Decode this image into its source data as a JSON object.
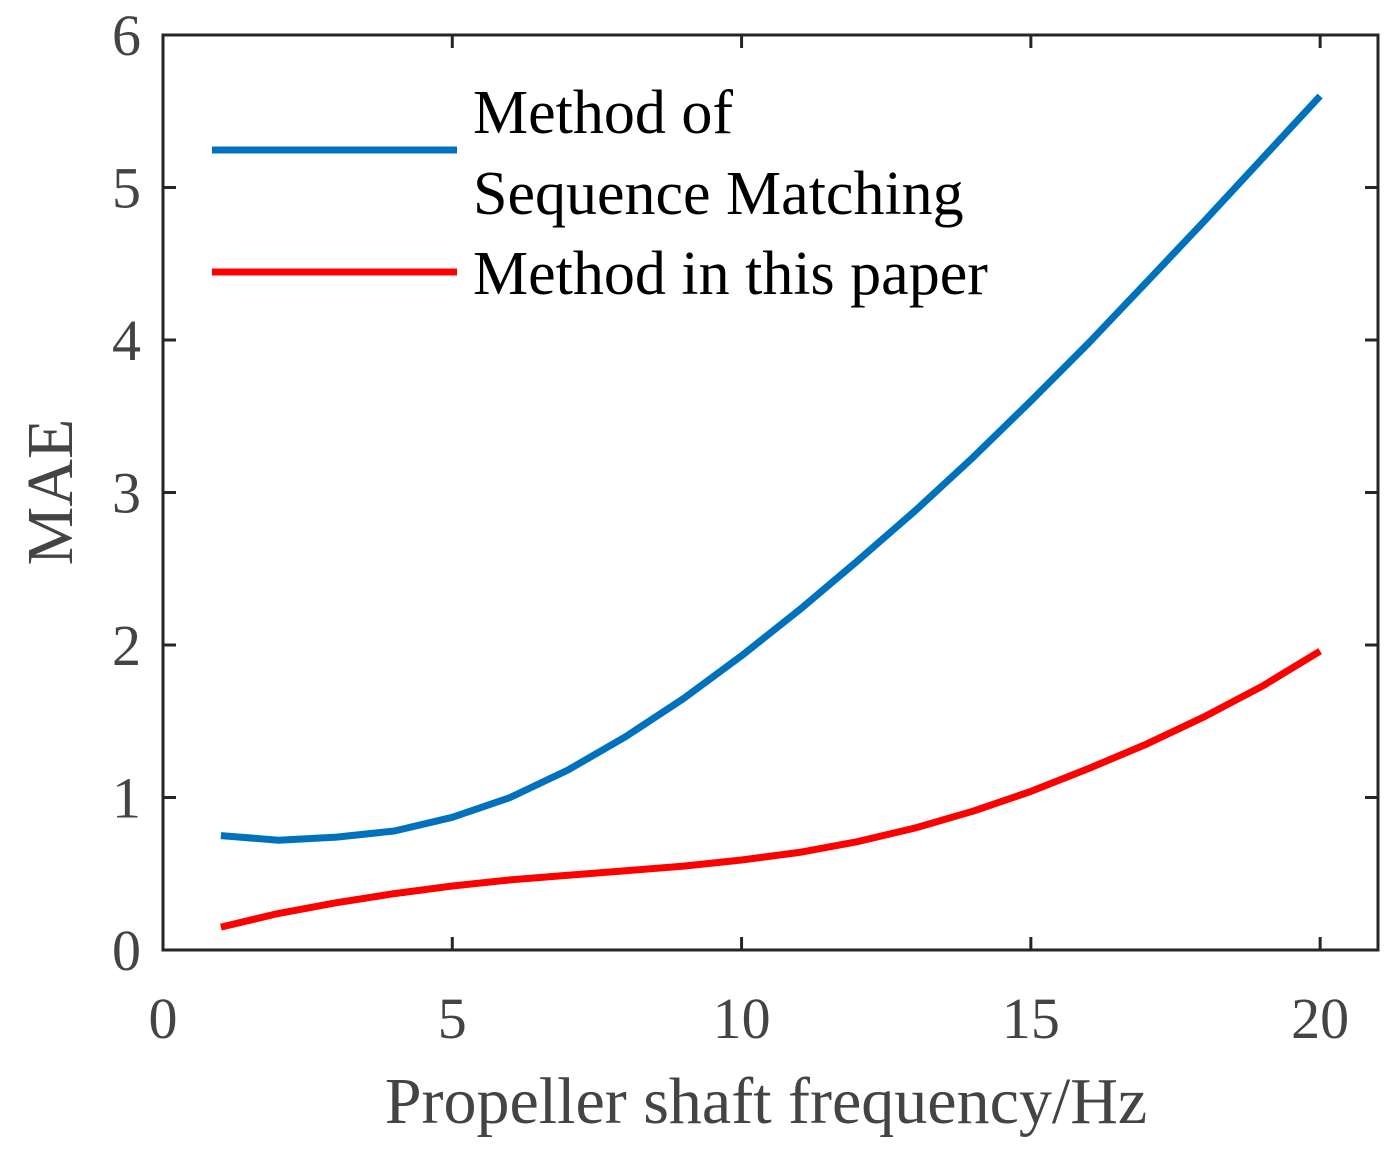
{
  "colors": {
    "series_blue": "#0072BD",
    "series_red": "#FF0000",
    "axis": "#262626",
    "tick_text": "#444444"
  },
  "chart_data": {
    "type": "line",
    "title": "",
    "xlabel": "Propeller shaft frequency/Hz",
    "ylabel": "MAE",
    "xlim": [
      0,
      21
    ],
    "ylim": [
      0,
      6
    ],
    "xticks": [
      0,
      5,
      10,
      15,
      20
    ],
    "yticks": [
      0,
      1,
      2,
      3,
      4,
      5,
      6
    ],
    "grid": false,
    "legend_position": "top-left",
    "x": [
      1,
      2,
      3,
      4,
      5,
      6,
      7,
      8,
      9,
      10,
      11,
      12,
      13,
      14,
      15,
      16,
      17,
      18,
      19,
      20
    ],
    "series": [
      {
        "name": "Method of Sequence Matching",
        "legend_lines": [
          "Method of",
          "Sequence Matching"
        ],
        "color": "#0072BD",
        "values": [
          0.75,
          0.72,
          0.74,
          0.78,
          0.87,
          1.0,
          1.18,
          1.4,
          1.65,
          1.93,
          2.23,
          2.55,
          2.88,
          3.23,
          3.6,
          3.98,
          4.38,
          4.78,
          5.19,
          5.6
        ]
      },
      {
        "name": "Method in this paper",
        "legend_lines": [
          "Method in this paper"
        ],
        "color": "#FF0000",
        "values": [
          0.15,
          0.24,
          0.31,
          0.37,
          0.42,
          0.46,
          0.49,
          0.52,
          0.55,
          0.59,
          0.64,
          0.71,
          0.8,
          0.91,
          1.04,
          1.19,
          1.35,
          1.53,
          1.73,
          1.96
        ]
      }
    ]
  }
}
